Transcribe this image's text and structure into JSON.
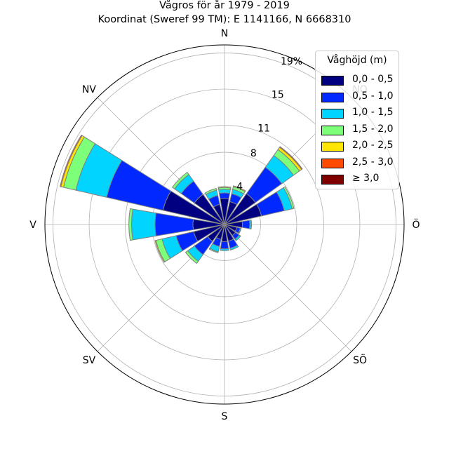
{
  "title": "Vågros för år 1979 - 2019",
  "subtitle": "Koordinat (Sweref 99 TM): E 1141166, N 6668310",
  "chart_data": {
    "type": "windrose",
    "directions": [
      "N",
      "NNO",
      "NO",
      "ONO",
      "Ö",
      "OSO",
      "SÖ",
      "SSO",
      "S",
      "SSV",
      "SV",
      "VSV",
      "V",
      "VNV",
      "NV",
      "NNV"
    ],
    "direction_labels": [
      "N",
      "NO",
      "Ö",
      "SÖ",
      "S",
      "SV",
      "V",
      "NV"
    ],
    "rticks": [
      4,
      8,
      11,
      15,
      19
    ],
    "rtick_labels": [
      "4",
      "8",
      "11",
      "15",
      "19%"
    ],
    "rmax": 19.9,
    "bins": [
      "0,0 - 0,5",
      "0,5 - 1,0",
      "1,0 - 1,5",
      "1,5 - 2,0",
      "2,0 - 2,5",
      "2,5 - 3,0",
      "≥ 3,0"
    ],
    "colors": [
      "#000080",
      "#0028ff",
      "#00d4ff",
      "#7dff7a",
      "#ffe600",
      "#ff4a00",
      "#800000"
    ],
    "values": [
      [
        2.9,
        0.6,
        0.4,
        0.2,
        0.1,
        0.0,
        0.0
      ],
      [
        2.6,
        0.9,
        0.5,
        0.3,
        0.1,
        0.0,
        0.0
      ],
      [
        4.2,
        3.6,
        1.6,
        0.8,
        0.3,
        0.1,
        0.0
      ],
      [
        4.2,
        2.6,
        0.9,
        0.2,
        0.0,
        0.0,
        0.0
      ],
      [
        2.0,
        0.8,
        0.2,
        0.0,
        0.0,
        0.0,
        0.0
      ],
      [
        1.4,
        0.4,
        0.1,
        0.0,
        0.0,
        0.0,
        0.0
      ],
      [
        1.5,
        0.5,
        0.2,
        0.0,
        0.0,
        0.0,
        0.0
      ],
      [
        1.9,
        0.8,
        0.2,
        0.0,
        0.0,
        0.0,
        0.0
      ],
      [
        1.9,
        0.8,
        0.2,
        0.0,
        0.0,
        0.0,
        0.0
      ],
      [
        1.7,
        0.8,
        0.6,
        0.1,
        0.0,
        0.0,
        0.0
      ],
      [
        2.3,
        1.8,
        0.9,
        0.3,
        0.0,
        0.0,
        0.0
      ],
      [
        3.5,
        2.0,
        1.6,
        0.7,
        0.1,
        0.0,
        0.0
      ],
      [
        3.5,
        4.2,
        2.6,
        0.3,
        0.0,
        0.0,
        0.0
      ],
      [
        7.0,
        6.4,
        3.5,
        1.4,
        0.3,
        0.1,
        0.0
      ],
      [
        4.1,
        1.8,
        0.9,
        0.3,
        0.0,
        0.0,
        0.0
      ],
      [
        2.3,
        1.0,
        0.6,
        0.2,
        0.0,
        0.0,
        0.0
      ]
    ],
    "legend_title": "Våghöjd (m)",
    "legend_position": "top-right",
    "grid": true
  }
}
